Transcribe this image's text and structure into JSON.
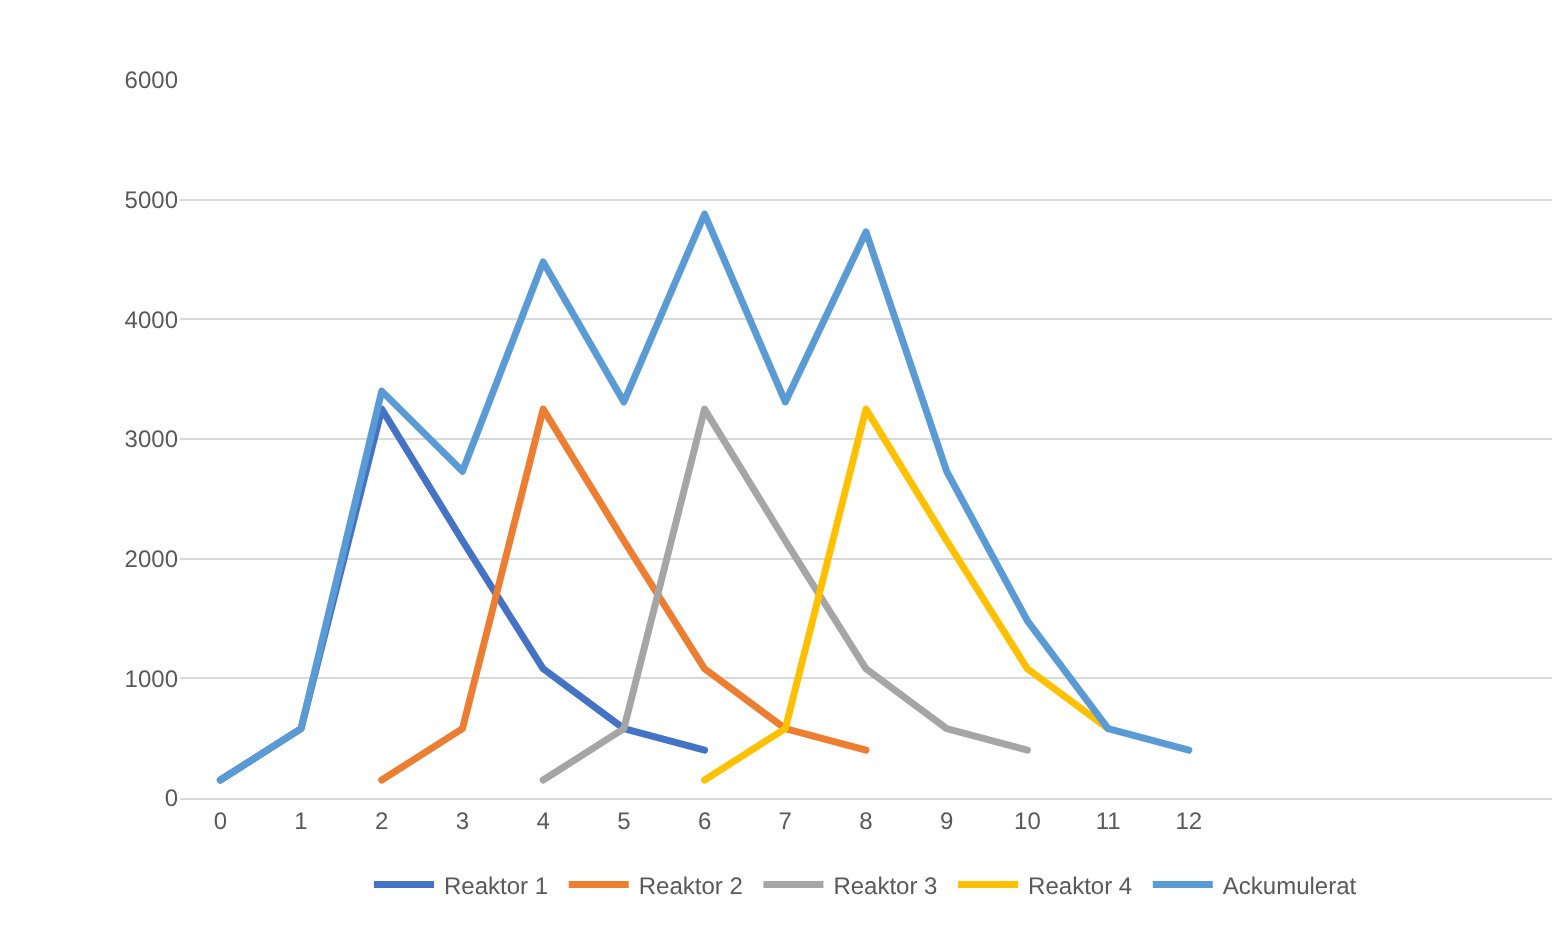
{
  "chart_data": {
    "type": "line",
    "x": [
      0,
      1,
      2,
      3,
      4,
      5,
      6,
      7,
      8,
      9,
      10,
      11,
      12
    ],
    "xlim": [
      -0.5,
      16.5
    ],
    "xticks": [
      0,
      1,
      2,
      3,
      4,
      5,
      6,
      7,
      8,
      9,
      10,
      11,
      12
    ],
    "series": [
      {
        "name": "Reaktor 1",
        "color": "#4472c4",
        "values": [
          150,
          580,
          3250,
          2150,
          1080,
          580,
          400,
          null,
          null,
          null,
          null,
          null,
          null
        ]
      },
      {
        "name": "Reaktor 2",
        "color": "#ed7d31",
        "values": [
          null,
          null,
          150,
          580,
          3250,
          2150,
          1080,
          580,
          400,
          null,
          null,
          null,
          null
        ]
      },
      {
        "name": "Reaktor 3",
        "color": "#a5a5a5",
        "values": [
          null,
          null,
          null,
          null,
          150,
          580,
          3250,
          2150,
          1080,
          580,
          400,
          null,
          null
        ]
      },
      {
        "name": "Reaktor 4",
        "color": "#ffc000",
        "values": [
          null,
          null,
          null,
          null,
          null,
          null,
          150,
          580,
          3250,
          2150,
          1080,
          580,
          null
        ]
      },
      {
        "name": "Ackumulerat",
        "color": "#5b9bd5",
        "values": [
          150,
          580,
          3400,
          2730,
          4480,
          3310,
          4880,
          3310,
          4730,
          2730,
          1480,
          580,
          400
        ]
      }
    ],
    "ylim": [
      0,
      6000
    ],
    "yticks": [
      0,
      1000,
      2000,
      3000,
      4000,
      5000,
      6000
    ],
    "grid": "y",
    "legend": "bottom",
    "marker": "none",
    "line_style": "solid"
  }
}
